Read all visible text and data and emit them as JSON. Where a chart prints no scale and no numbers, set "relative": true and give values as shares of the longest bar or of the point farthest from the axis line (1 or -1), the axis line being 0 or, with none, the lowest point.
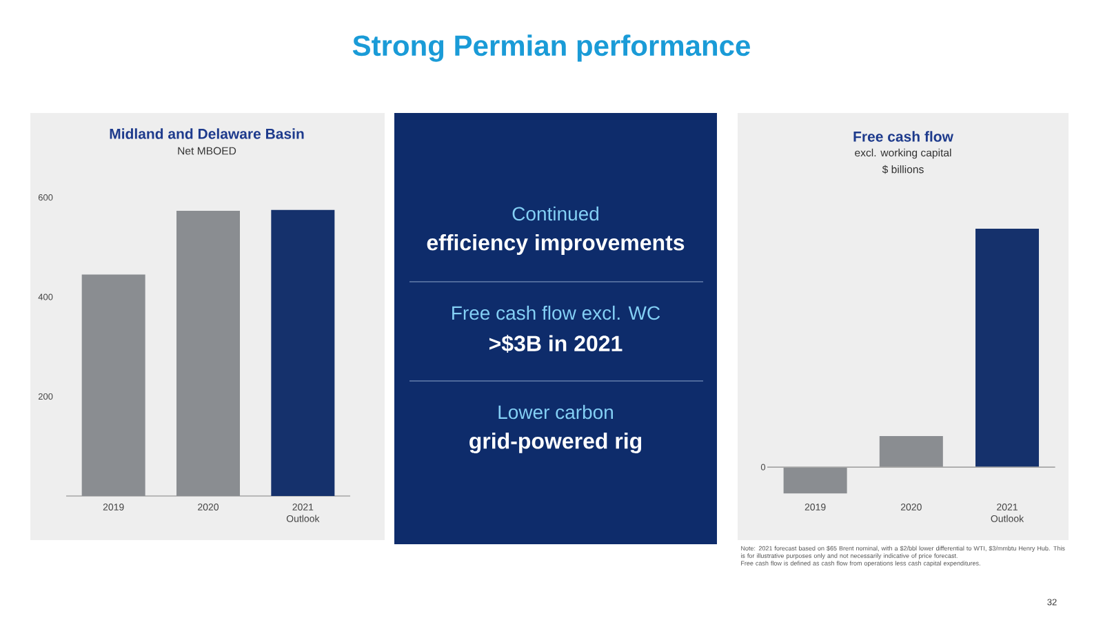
{
  "chart_data": [
    {
      "type": "bar",
      "title": "Midland and Delaware Basin",
      "ylabel": "Net MBOED",
      "categories": [
        "2019",
        "2020",
        "2021 Outlook"
      ],
      "values": [
        445,
        573,
        575
      ],
      "colors": [
        "#8a8d91",
        "#8a8d91",
        "#15316c"
      ],
      "ylim": [
        0,
        600
      ],
      "yticks": [
        200,
        400,
        600
      ]
    },
    {
      "type": "other",
      "title": "Strong Permian performance",
      "annotations": [
        "Continued",
        "efficiency improvements",
        "Free cash flow excl. WC",
        ">$3B in 2021",
        "Lower carbon",
        "grid-powered rig"
      ]
    },
    {
      "type": "bar",
      "title": "Free cash flow",
      "subtitle": "excl. working capital",
      "ylabel": "$ billions",
      "categories": [
        "2019",
        "2020",
        "2021 Outlook"
      ],
      "values": [
        -0.11,
        0.13,
        1
      ],
      "colors": [
        "#8a8d91",
        "#8a8d91",
        "#15316c"
      ],
      "relative": true,
      "ref_lines": [
        {
          "axis": "y",
          "value": 0,
          "label": "0"
        }
      ],
      "annotations": [
        "Note: 2021 forecast based on $65 Brent nominal, with a $2/bbl lower differential to WTI, $3/mmbtu Henry Hub. This is for illustrative purposes only and not necessarily indicative of price forecast.",
        "Free cash flow is defined as cash flow from operations less cash capital expenditures.",
        "32"
      ]
    }
  ]
}
